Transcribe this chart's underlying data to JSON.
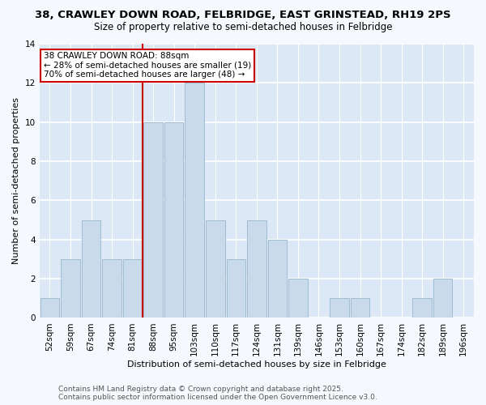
{
  "title_line1": "38, CRAWLEY DOWN ROAD, FELBRIDGE, EAST GRINSTEAD, RH19 2PS",
  "title_line2": "Size of property relative to semi-detached houses in Felbridge",
  "xlabel": "Distribution of semi-detached houses by size in Felbridge",
  "ylabel": "Number of semi-detached properties",
  "categories": [
    "52sqm",
    "59sqm",
    "67sqm",
    "74sqm",
    "81sqm",
    "88sqm",
    "95sqm",
    "103sqm",
    "110sqm",
    "117sqm",
    "124sqm",
    "131sqm",
    "139sqm",
    "146sqm",
    "153sqm",
    "160sqm",
    "167sqm",
    "174sqm",
    "182sqm",
    "189sqm",
    "196sqm"
  ],
  "values": [
    1,
    3,
    5,
    3,
    3,
    10,
    10,
    12,
    5,
    3,
    5,
    4,
    2,
    0,
    1,
    1,
    0,
    0,
    1,
    2,
    0
  ],
  "bar_color": "#c9daea",
  "bar_edge_color": "#a0bcd4",
  "vline_index": 5,
  "vline_color": "#cc0000",
  "annotation_text": "38 CRAWLEY DOWN ROAD: 88sqm\n← 28% of semi-detached houses are smaller (19)\n70% of semi-detached houses are larger (48) →",
  "annotation_box_edgecolor": "#cc0000",
  "footer": "Contains HM Land Registry data © Crown copyright and database right 2025.\nContains public sector information licensed under the Open Government Licence v3.0.",
  "ylim": [
    0,
    14
  ],
  "yticks": [
    0,
    2,
    4,
    6,
    8,
    10,
    12,
    14
  ],
  "fig_bg_color": "#f5f8fc",
  "plot_bg_color": "#dce8f5",
  "grid_color": "#ffffff",
  "title1_fontsize": 9.5,
  "title2_fontsize": 8.5,
  "axis_label_fontsize": 8,
  "tick_fontsize": 7.5,
  "footer_fontsize": 6.5
}
